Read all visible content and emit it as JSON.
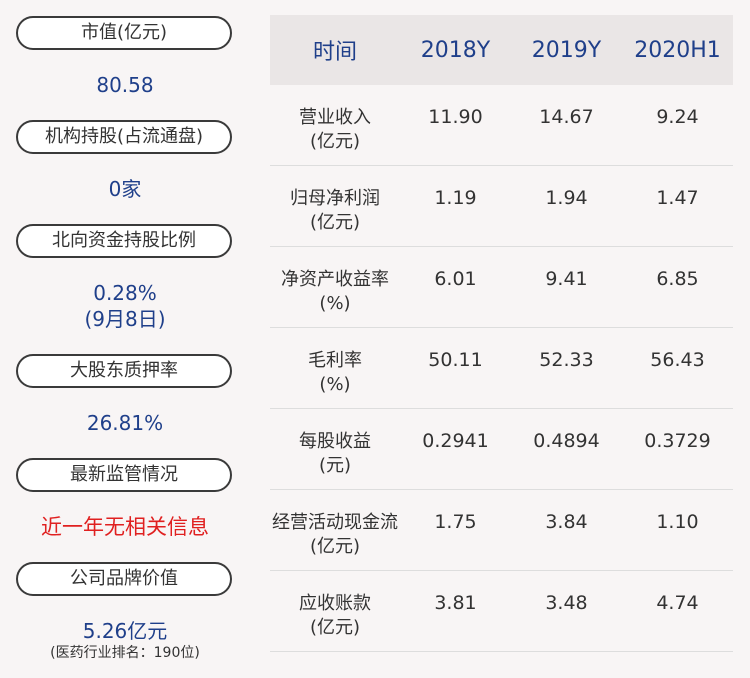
{
  "left_panel": {
    "items": [
      {
        "label": "市值(亿元)",
        "value": "80.58"
      },
      {
        "label": "机构持股(占流通盘)",
        "value": "0家"
      },
      {
        "label": "北向资金持股比例",
        "value": "0.28%",
        "value2": "(9月8日)"
      },
      {
        "label": "大股东质押率",
        "value": "26.81%"
      },
      {
        "label": "最新监管情况",
        "value": "近一年无相关信息"
      },
      {
        "label": "公司品牌价值",
        "value": "5.26亿元",
        "note": "(医药行业排名：190位)"
      }
    ],
    "colors": {
      "value": "#1f3f8a",
      "alert": "#e02020"
    }
  },
  "table": {
    "headers": [
      "时间",
      "2018Y",
      "2019Y",
      "2020H1"
    ],
    "rows": [
      {
        "name": "营业收入",
        "unit": "(亿元)",
        "values": [
          "11.90",
          "14.67",
          "9.24"
        ]
      },
      {
        "name": "归母净利润",
        "unit": "(亿元)",
        "values": [
          "1.19",
          "1.94",
          "1.47"
        ]
      },
      {
        "name": "净资产收益率",
        "unit": "(%)",
        "values": [
          "6.01",
          "9.41",
          "6.85"
        ]
      },
      {
        "name": "毛利率",
        "unit": "(%)",
        "values": [
          "50.11",
          "52.33",
          "56.43"
        ]
      },
      {
        "name": "每股收益",
        "unit": "(元)",
        "values": [
          "0.2941",
          "0.4894",
          "0.3729"
        ]
      },
      {
        "name": "经营活动现金流",
        "unit": "(亿元)",
        "values": [
          "1.75",
          "3.84",
          "1.10"
        ]
      },
      {
        "name": "应收账款",
        "unit": "(亿元)",
        "values": [
          "3.81",
          "3.48",
          "4.74"
        ]
      }
    ]
  }
}
